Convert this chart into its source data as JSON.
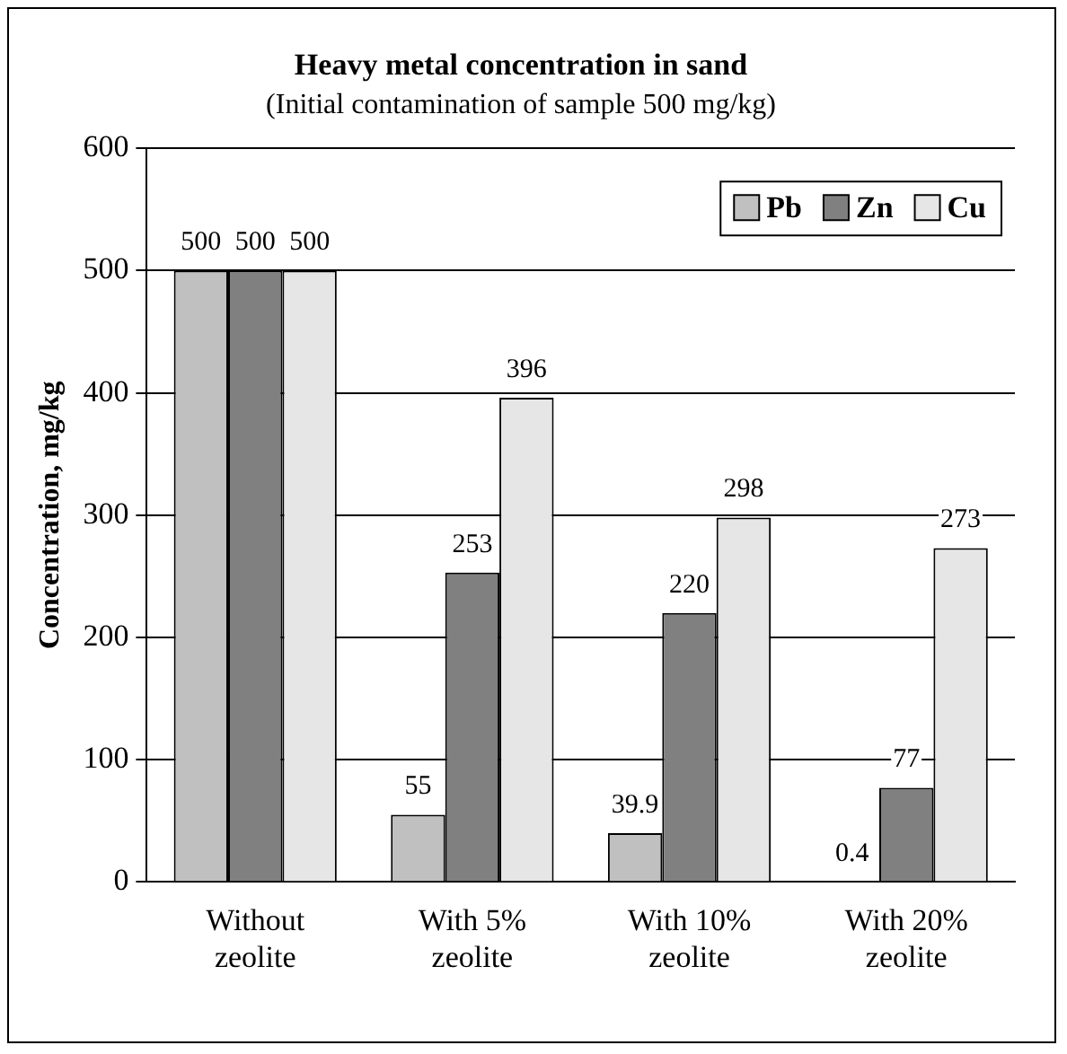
{
  "chart_data": {
    "type": "bar",
    "title": "Heavy metal concentration in sand",
    "subtitle": "(Initial contamination of sample 500 mg/kg)",
    "ylabel": "Concentration, mg/kg",
    "categories": [
      "Without zeolite",
      "With 5% zeolite",
      "With 10% zeolite",
      "With 20% zeolite"
    ],
    "series": [
      {
        "name": "Pb",
        "color": "#c0c0c0",
        "values": [
          500,
          55,
          39.9,
          0.4
        ]
      },
      {
        "name": "Zn",
        "color": "#808080",
        "values": [
          500,
          253,
          220,
          77
        ]
      },
      {
        "name": "Cu",
        "color": "#e6e6e6",
        "values": [
          500,
          396,
          298,
          273
        ]
      }
    ],
    "ylim": [
      0,
      600
    ],
    "yticks": [
      0,
      100,
      200,
      300,
      400,
      500,
      600
    ],
    "grid": "y",
    "legend": "top right",
    "data_labels": true
  }
}
